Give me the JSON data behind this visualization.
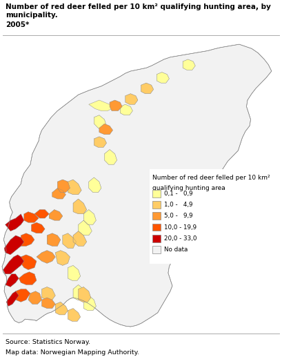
{
  "title_line1": "Number of red deer felled per 10 km² qualifying hunting area, by municipality.",
  "title_line2": "2005*",
  "source_line1": "Source: Statistics Norway.",
  "source_line2": "Map data: Norwegian Mapping Authority.",
  "legend_title_line1": "Number of red deer felled per 10 km²",
  "legend_title_line2": "qualifying hunting area",
  "legend_entries": [
    {
      "label": "0,1 -   0,9",
      "color": "#FFFF99"
    },
    {
      "label": "1,0 -   4,9",
      "color": "#FFCC66"
    },
    {
      "label": "5,0 -   9,9",
      "color": "#FF9933"
    },
    {
      "label": "10,0 - 19,9",
      "color": "#FF5500"
    },
    {
      "label": "20,0 - 33,0",
      "color": "#CC0000"
    },
    {
      "label": "No data",
      "color": "#F2F2F2"
    }
  ],
  "background_color": "#FFFFFF",
  "title_fontsize": 7.5,
  "source_fontsize": 6.8,
  "legend_fontsize": 6.8,
  "fig_width": 4.09,
  "fig_height": 5.17,
  "dpi": 100,
  "norway_lon_min": 4.5,
  "norway_lon_max": 31.5,
  "norway_lat_min": 57.5,
  "norway_lat_max": 71.3
}
